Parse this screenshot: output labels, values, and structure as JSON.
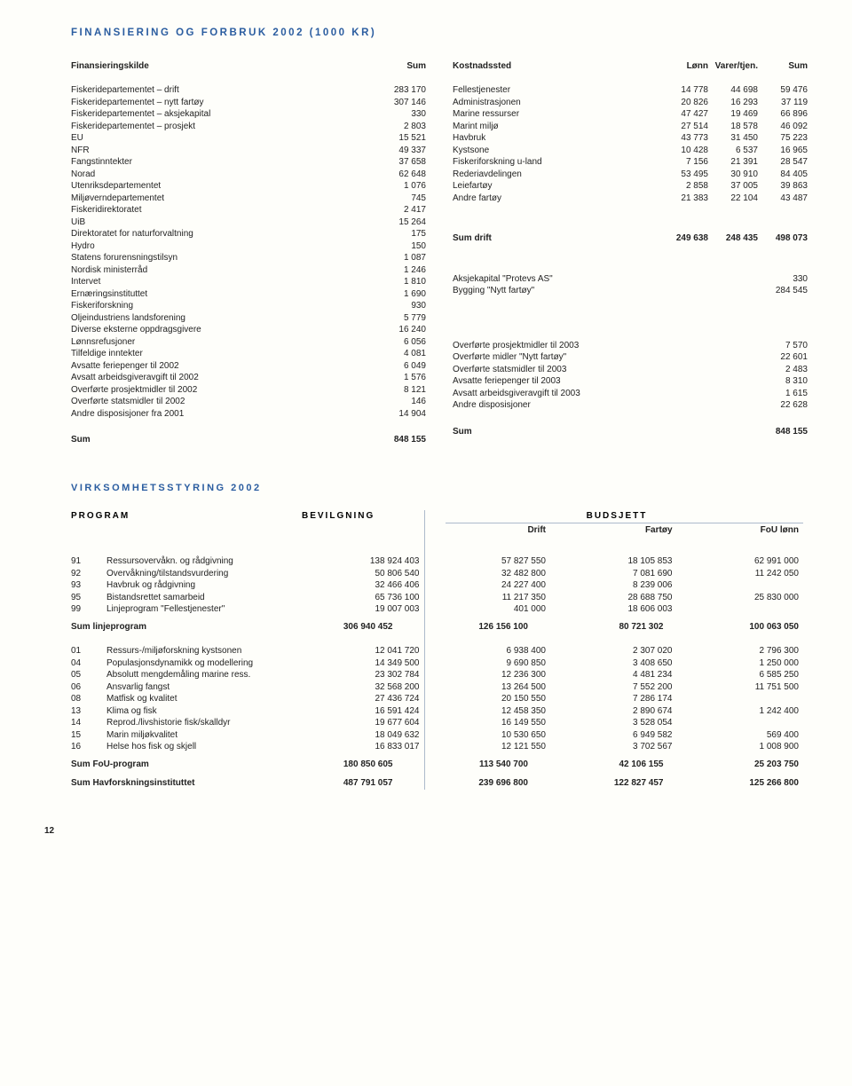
{
  "title": "FINANSIERING OG FORBRUK 2002 (1000 KR)",
  "leftHeader": {
    "a": "Finansieringskilde",
    "b": "Sum"
  },
  "rightHeader": {
    "a": "Kostnadssted",
    "b": "Lønn",
    "c": "Varer/tjen.",
    "d": "Sum"
  },
  "left": [
    {
      "label": "Fiskeridepartementet – drift",
      "v": "283 170"
    },
    {
      "label": "Fiskeridepartementet – nytt fartøy",
      "v": "307 146"
    },
    {
      "label": "Fiskeridepartementet – aksjekapital",
      "v": "330"
    },
    {
      "label": "Fiskeridepartementet – prosjekt",
      "v": "2 803"
    },
    {
      "label": "EU",
      "v": "15 521"
    },
    {
      "label": "NFR",
      "v": "49 337"
    },
    {
      "label": "Fangstinntekter",
      "v": "37 658"
    },
    {
      "label": "Norad",
      "v": "62 648"
    },
    {
      "label": "Utenriksdepartementet",
      "v": "1 076"
    },
    {
      "label": "Miljøverndepartementet",
      "v": "745"
    },
    {
      "label": "Fiskeridirektoratet",
      "v": "2 417"
    },
    {
      "label": "UiB",
      "v": "15 264"
    },
    {
      "label": "Direktoratet for naturforvaltning",
      "v": "175"
    },
    {
      "label": "Hydro",
      "v": "150"
    },
    {
      "label": "Statens forurensningstilsyn",
      "v": "1 087"
    },
    {
      "label": "Nordisk ministerråd",
      "v": "1 246"
    },
    {
      "label": "Intervet",
      "v": "1 810"
    },
    {
      "label": "Ernæringsinstituttet",
      "v": "1 690"
    },
    {
      "label": "Fiskeriforskning",
      "v": "930"
    },
    {
      "label": "Oljeindustriens landsforening",
      "v": "5 779"
    },
    {
      "label": "Diverse eksterne oppdragsgivere",
      "v": "16 240"
    },
    {
      "label": "Lønnsrefusjoner",
      "v": "6 056"
    },
    {
      "label": "Tilfeldige inntekter",
      "v": "4 081"
    },
    {
      "label": "Avsatte feriepenger til 2002",
      "v": "6 049"
    },
    {
      "label": "Avsatt arbeidsgiveravgift til 2002",
      "v": "1 576"
    },
    {
      "label": "Overførte prosjektmidler til 2002",
      "v": "8 121"
    },
    {
      "label": "Overførte statsmidler til 2002",
      "v": "146"
    },
    {
      "label": "Andre disposisjoner fra 2001",
      "v": "14 904"
    }
  ],
  "leftSum": {
    "label": "Sum",
    "v": "848 155"
  },
  "right1": [
    {
      "label": "Fellestjenester",
      "a": "14 778",
      "b": "44 698",
      "c": "59 476"
    },
    {
      "label": "Administrasjonen",
      "a": "20 826",
      "b": "16 293",
      "c": "37 119"
    },
    {
      "label": "Marine ressurser",
      "a": "47 427",
      "b": "19 469",
      "c": "66 896"
    },
    {
      "label": "Marint miljø",
      "a": "27 514",
      "b": "18 578",
      "c": "46 092"
    },
    {
      "label": "Havbruk",
      "a": "43 773",
      "b": "31 450",
      "c": "75 223"
    },
    {
      "label": "Kystsone",
      "a": "10 428",
      "b": "6 537",
      "c": "16 965"
    },
    {
      "label": "Fiskeriforskning u-land",
      "a": "7 156",
      "b": "21 391",
      "c": "28 547"
    },
    {
      "label": "Rederiavdelingen",
      "a": "53 495",
      "b": "30 910",
      "c": "84 405"
    },
    {
      "label": "Leiefartøy",
      "a": "2 858",
      "b": "37 005",
      "c": "39 863"
    },
    {
      "label": "Andre fartøy",
      "a": "21 383",
      "b": "22 104",
      "c": "43 487"
    }
  ],
  "rightDrift": {
    "label": "Sum drift",
    "a": "249 638",
    "b": "248 435",
    "c": "498 073"
  },
  "right2": [
    {
      "label": "Aksjekapital \"Protevs AS\"",
      "c": "330"
    },
    {
      "label": "Bygging \"Nytt fartøy\"",
      "c": "284 545"
    }
  ],
  "right3": [
    {
      "label": "Overførte prosjektmidler til 2003",
      "c": "7 570"
    },
    {
      "label": "Overførte midler \"Nytt fartøy\"",
      "c": "22 601"
    },
    {
      "label": "Overførte statsmidler til 2003",
      "c": "2 483"
    },
    {
      "label": "Avsatte feriepenger til 2003",
      "c": "8 310"
    },
    {
      "label": "Avsatt arbeidsgiveravgift til 2003",
      "c": "1 615"
    },
    {
      "label": "Andre disposisjoner",
      "c": "22 628"
    }
  ],
  "rightSum": {
    "label": "Sum",
    "c": "848 155"
  },
  "virkTitle": "VIRKSOMHETSSTYRING 2002",
  "progHeader": {
    "a": "PROGRAM",
    "b": "BEVILGNING",
    "c": "BUDSJETT"
  },
  "progSub": {
    "a": "Drift",
    "b": "Fartøy",
    "c": "FoU lønn"
  },
  "block1": [
    {
      "code": "91",
      "name": "Ressursovervåkn. og rådgivning",
      "v": [
        "138 924 403",
        "57 827 550",
        "18 105 853",
        "62 991 000"
      ]
    },
    {
      "code": "92",
      "name": "Overvåkning/tilstandsvurdering",
      "v": [
        "50 806 540",
        "32 482 800",
        "7 081 690",
        "11 242 050"
      ]
    },
    {
      "code": "93",
      "name": "Havbruk og rådgivning",
      "v": [
        "32 466 406",
        "24 227 400",
        "8 239 006",
        ""
      ]
    },
    {
      "code": "95",
      "name": "Bistandsrettet samarbeid",
      "v": [
        "65 736 100",
        "11 217 350",
        "28 688 750",
        "25 830 000"
      ]
    },
    {
      "code": "99",
      "name": "Linjeprogram \"Fellestjenester\"",
      "v": [
        "19 007 003",
        "401 000",
        "18 606 003",
        ""
      ]
    }
  ],
  "sum1": {
    "label": "Sum linjeprogram",
    "v": [
      "306 940 452",
      "126 156 100",
      "80 721 302",
      "100 063 050"
    ]
  },
  "block2": [
    {
      "code": "01",
      "name": "Ressurs-/miljøforskning kystsonen",
      "v": [
        "12 041 720",
        "6 938 400",
        "2 307 020",
        "2 796 300"
      ]
    },
    {
      "code": "04",
      "name": "Populasjonsdynamikk og modellering",
      "v": [
        "14 349 500",
        "9 690 850",
        "3 408 650",
        "1 250 000"
      ]
    },
    {
      "code": "05",
      "name": "Absolutt mengdemåling marine ress.",
      "v": [
        "23 302 784",
        "12 236 300",
        "4 481 234",
        "6 585 250"
      ]
    },
    {
      "code": "06",
      "name": "Ansvarlig fangst",
      "v": [
        "32 568 200",
        "13 264 500",
        "7 552 200",
        "11 751 500"
      ]
    },
    {
      "code": "08",
      "name": "Matfisk og kvalitet",
      "v": [
        "27 436 724",
        "20 150 550",
        "7 286 174",
        ""
      ]
    },
    {
      "code": "13",
      "name": "Klima og fisk",
      "v": [
        "16 591 424",
        "12 458 350",
        "2 890 674",
        "1 242 400"
      ]
    },
    {
      "code": "14",
      "name": "Reprod./livshistorie fisk/skalldyr",
      "v": [
        "19 677 604",
        "16 149 550",
        "3 528 054",
        ""
      ]
    },
    {
      "code": "15",
      "name": "Marin miljøkvalitet",
      "v": [
        "18 049 632",
        "10 530 650",
        "6 949 582",
        "569 400"
      ]
    },
    {
      "code": "16",
      "name": "Helse hos fisk og skjell",
      "v": [
        "16 833 017",
        "12 121 550",
        "3 702 567",
        "1 008 900"
      ]
    }
  ],
  "sum2": {
    "label": "Sum FoU-program",
    "v": [
      "180 850 605",
      "113 540 700",
      "42 106 155",
      "25 203 750"
    ]
  },
  "sum3": {
    "label": "Sum Havforskningsinstituttet",
    "v": [
      "487 791 057",
      "239 696 800",
      "122 827 457",
      "125 266 800"
    ]
  },
  "pagenum": "12"
}
